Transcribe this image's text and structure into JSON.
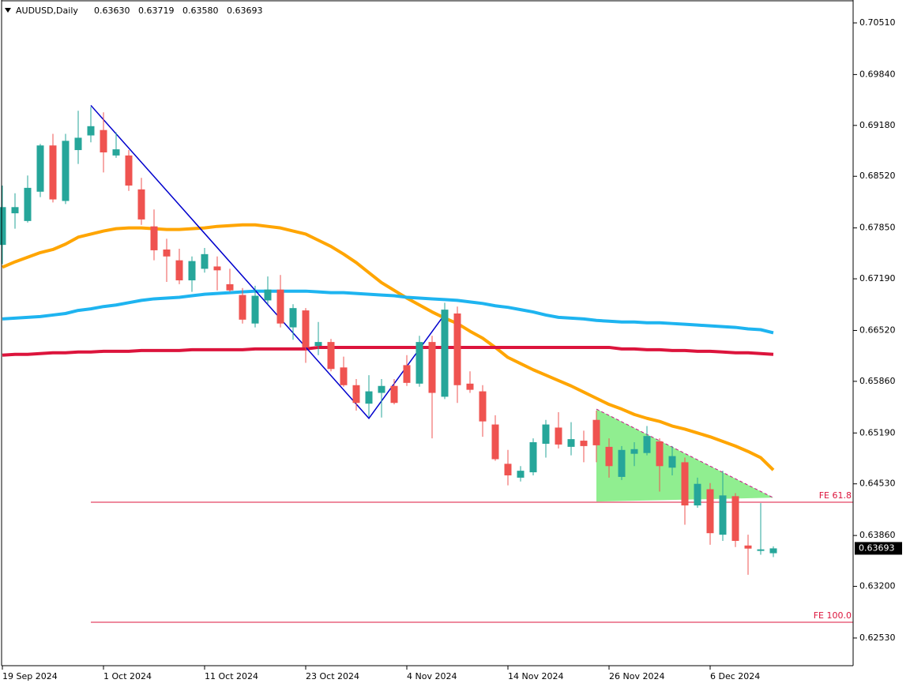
{
  "chart_data": {
    "type": "candlestick",
    "header": {
      "symbol": "AUDUSD,Daily",
      "ohlc": [
        {
          "value": 0.6363,
          "label": "0.63630"
        },
        {
          "value": 0.63719,
          "label": "0.63719"
        },
        {
          "value": 0.6358,
          "label": "0.63580"
        },
        {
          "value": 0.63693,
          "label": "0.63693"
        }
      ]
    },
    "categories": [
      "19 Sep 2024",
      null,
      null,
      null,
      null,
      null,
      null,
      null,
      "1 Oct 2024",
      null,
      null,
      null,
      null,
      null,
      null,
      null,
      "11 Oct 2024",
      null,
      null,
      null,
      null,
      null,
      null,
      null,
      "23 Oct 2024",
      null,
      null,
      null,
      null,
      null,
      null,
      null,
      "4 Nov 2024",
      null,
      null,
      null,
      null,
      null,
      null,
      null,
      "14 Nov 2024",
      null,
      null,
      null,
      null,
      null,
      null,
      null,
      "26 Nov 2024",
      null,
      null,
      null,
      null,
      null,
      null,
      null,
      "6 Dec 2024",
      null,
      null,
      null,
      null,
      null
    ],
    "candles": {
      "up_color": "#26a69a",
      "down_color": "#ef5350",
      "open": [
        0.6763,
        0.6804,
        0.6794,
        0.6832,
        0.6892,
        0.682,
        0.6886,
        0.6905,
        0.6912,
        0.6879,
        0.6879,
        0.6835,
        0.6787,
        0.6757,
        0.6743,
        0.6717,
        0.6732,
        0.6735,
        0.6712,
        0.6698,
        0.6661,
        0.6691,
        0.6705,
        0.6656,
        0.6678,
        0.6632,
        0.6637,
        0.6604,
        0.6581,
        0.6557,
        0.6571,
        0.658,
        0.6607,
        0.6583,
        0.6637,
        0.6566,
        0.6674,
        0.6583,
        0.6573,
        0.653,
        0.6479,
        0.6461,
        0.6468,
        0.6505,
        0.6526,
        0.6501,
        0.6509,
        0.6536,
        0.6501,
        0.6462,
        0.6492,
        0.6493,
        0.6508,
        0.6474,
        0.6481,
        0.6425,
        0.6446,
        0.6387,
        0.6437,
        0.6373,
        0.6366,
        0.6363
      ],
      "high": [
        0.684,
        0.683,
        0.6853,
        0.6894,
        0.6907,
        0.6907,
        0.6937,
        0.6942,
        0.6935,
        0.6909,
        0.6886,
        0.685,
        0.6809,
        0.6771,
        0.6758,
        0.6748,
        0.6759,
        0.6748,
        0.6732,
        0.6707,
        0.671,
        0.6722,
        0.6724,
        0.6686,
        0.6681,
        0.6663,
        0.6641,
        0.6618,
        0.6589,
        0.6594,
        0.6589,
        0.6589,
        0.662,
        0.6645,
        0.6645,
        0.6688,
        0.6683,
        0.6599,
        0.6581,
        0.6542,
        0.6497,
        0.6476,
        0.6512,
        0.6536,
        0.6546,
        0.6533,
        0.6522,
        0.6548,
        0.6512,
        0.6502,
        0.6507,
        0.6528,
        0.6512,
        0.6502,
        0.6487,
        0.6461,
        0.6454,
        0.647,
        0.6441,
        0.6387,
        0.6428,
        0.63719
      ],
      "low": [
        0.6738,
        0.6784,
        0.6792,
        0.6825,
        0.6818,
        0.6816,
        0.6868,
        0.6896,
        0.6857,
        0.6876,
        0.6833,
        0.6789,
        0.6743,
        0.6715,
        0.6712,
        0.6702,
        0.6727,
        0.6704,
        0.6702,
        0.6661,
        0.6656,
        0.6686,
        0.6656,
        0.664,
        0.661,
        0.662,
        0.6599,
        0.6579,
        0.6548,
        0.654,
        0.6539,
        0.6556,
        0.658,
        0.6579,
        0.6512,
        0.6563,
        0.6558,
        0.6571,
        0.6514,
        0.6483,
        0.6451,
        0.6456,
        0.6464,
        0.6487,
        0.6499,
        0.649,
        0.6481,
        0.6481,
        0.6461,
        0.6458,
        0.6476,
        0.649,
        0.6443,
        0.6464,
        0.64,
        0.6422,
        0.6374,
        0.6379,
        0.6371,
        0.6335,
        0.6361,
        0.6358
      ],
      "close": [
        0.6812,
        0.6812,
        0.6837,
        0.6892,
        0.6822,
        0.6898,
        0.6902,
        0.6917,
        0.6883,
        0.6887,
        0.684,
        0.6796,
        0.6756,
        0.6748,
        0.6717,
        0.6742,
        0.6751,
        0.673,
        0.6704,
        0.6666,
        0.6697,
        0.6705,
        0.6661,
        0.6681,
        0.663,
        0.6637,
        0.6602,
        0.6581,
        0.6558,
        0.6573,
        0.658,
        0.6558,
        0.6584,
        0.6637,
        0.6571,
        0.6679,
        0.6581,
        0.6575,
        0.6534,
        0.6485,
        0.6464,
        0.647,
        0.6507,
        0.653,
        0.6504,
        0.6511,
        0.6502,
        0.6503,
        0.6476,
        0.6497,
        0.6498,
        0.6515,
        0.6476,
        0.6489,
        0.6425,
        0.6453,
        0.6389,
        0.6438,
        0.6379,
        0.6369,
        0.6368,
        0.63693
      ]
    },
    "moving_averages": [
      {
        "color": "#ffa500",
        "values": [
          0.6734,
          0.6741,
          0.6747,
          0.6753,
          0.6757,
          0.6764,
          0.6773,
          0.6777,
          0.6781,
          0.6784,
          0.6785,
          0.6785,
          0.6784,
          0.6783,
          0.6783,
          0.6784,
          0.6785,
          0.6787,
          0.6788,
          0.6789,
          0.6789,
          0.6787,
          0.6785,
          0.6781,
          0.6777,
          0.6769,
          0.6761,
          0.6751,
          0.674,
          0.6727,
          0.6714,
          0.6704,
          0.6694,
          0.6685,
          0.6676,
          0.6668,
          0.6661,
          0.6651,
          0.6642,
          0.663,
          0.6617,
          0.6609,
          0.6601,
          0.6594,
          0.6587,
          0.658,
          0.6572,
          0.6564,
          0.6556,
          0.655,
          0.6543,
          0.6538,
          0.6534,
          0.6528,
          0.6524,
          0.6519,
          0.6514,
          0.6508,
          0.6502,
          0.6495,
          0.6487,
          0.6471
        ]
      },
      {
        "color": "#1eb4f0",
        "values": [
          0.6667,
          0.6668,
          0.6669,
          0.667,
          0.6672,
          0.6674,
          0.6678,
          0.668,
          0.6683,
          0.6685,
          0.6688,
          0.6691,
          0.6693,
          0.6694,
          0.6695,
          0.6697,
          0.6699,
          0.67,
          0.6701,
          0.6702,
          0.6703,
          0.6703,
          0.6703,
          0.6703,
          0.6703,
          0.6702,
          0.6701,
          0.6701,
          0.67,
          0.6699,
          0.6698,
          0.6697,
          0.6695,
          0.6694,
          0.6693,
          0.6692,
          0.6691,
          0.6689,
          0.6687,
          0.6684,
          0.6682,
          0.6679,
          0.6676,
          0.6672,
          0.6669,
          0.6668,
          0.6667,
          0.6665,
          0.6664,
          0.6663,
          0.6663,
          0.6662,
          0.6662,
          0.6661,
          0.666,
          0.6659,
          0.6658,
          0.6657,
          0.6656,
          0.6654,
          0.6653,
          0.6649
        ]
      },
      {
        "color": "#dc143c",
        "values": [
          0.662,
          0.6621,
          0.6621,
          0.6622,
          0.6623,
          0.6623,
          0.6624,
          0.6624,
          0.6625,
          0.6625,
          0.6625,
          0.6626,
          0.6626,
          0.6626,
          0.6626,
          0.6627,
          0.6627,
          0.6627,
          0.6627,
          0.6627,
          0.6628,
          0.6628,
          0.6628,
          0.6628,
          0.6628,
          0.663,
          0.663,
          0.663,
          0.663,
          0.663,
          0.663,
          0.663,
          0.663,
          0.663,
          0.663,
          0.663,
          0.663,
          0.663,
          0.663,
          0.663,
          0.663,
          0.663,
          0.663,
          0.663,
          0.663,
          0.663,
          0.663,
          0.663,
          0.663,
          0.6628,
          0.6628,
          0.6627,
          0.6627,
          0.6626,
          0.6626,
          0.6625,
          0.6625,
          0.6624,
          0.6623,
          0.6623,
          0.6622,
          0.6621
        ]
      }
    ],
    "zigzag": {
      "color": "#0000cd",
      "x": [
        7,
        29,
        35
      ],
      "values": [
        0.6944,
        0.6538,
        0.6673
      ]
    },
    "triangle": {
      "color": "#90ee90",
      "edge_color": "#c71585",
      "x": [
        47,
        47,
        61
      ],
      "values": [
        0.655,
        0.643,
        0.6435
      ]
    },
    "levels": [
      {
        "label": "FE 61.8",
        "value": 0.64292,
        "color": "#dc143c",
        "from": 7
      },
      {
        "label": "FE 100.0",
        "value": 0.62735,
        "color": "#dc143c",
        "from": 7
      }
    ],
    "last_price": {
      "value": 0.63693,
      "label": "0.63693"
    },
    "ylim": [
      0.62171,
      0.70807
    ],
    "yticks": [
      {
        "value": 0.7051,
        "label": "0.70510"
      },
      {
        "value": 0.6984,
        "label": "0.69840"
      },
      {
        "value": 0.6918,
        "label": "0.69180"
      },
      {
        "value": 0.6852,
        "label": "0.68520"
      },
      {
        "value": 0.6785,
        "label": "0.67850"
      },
      {
        "value": 0.6719,
        "label": "0.67190"
      },
      {
        "value": 0.6652,
        "label": "0.66520"
      },
      {
        "value": 0.6586,
        "label": "0.65860"
      },
      {
        "value": 0.6519,
        "label": "0.65190"
      },
      {
        "value": 0.6453,
        "label": "0.64530"
      },
      {
        "value": 0.6386,
        "label": "0.63860"
      },
      {
        "value": 0.632,
        "label": "0.63200"
      },
      {
        "value": 0.6253,
        "label": "0.62530"
      }
    ]
  }
}
